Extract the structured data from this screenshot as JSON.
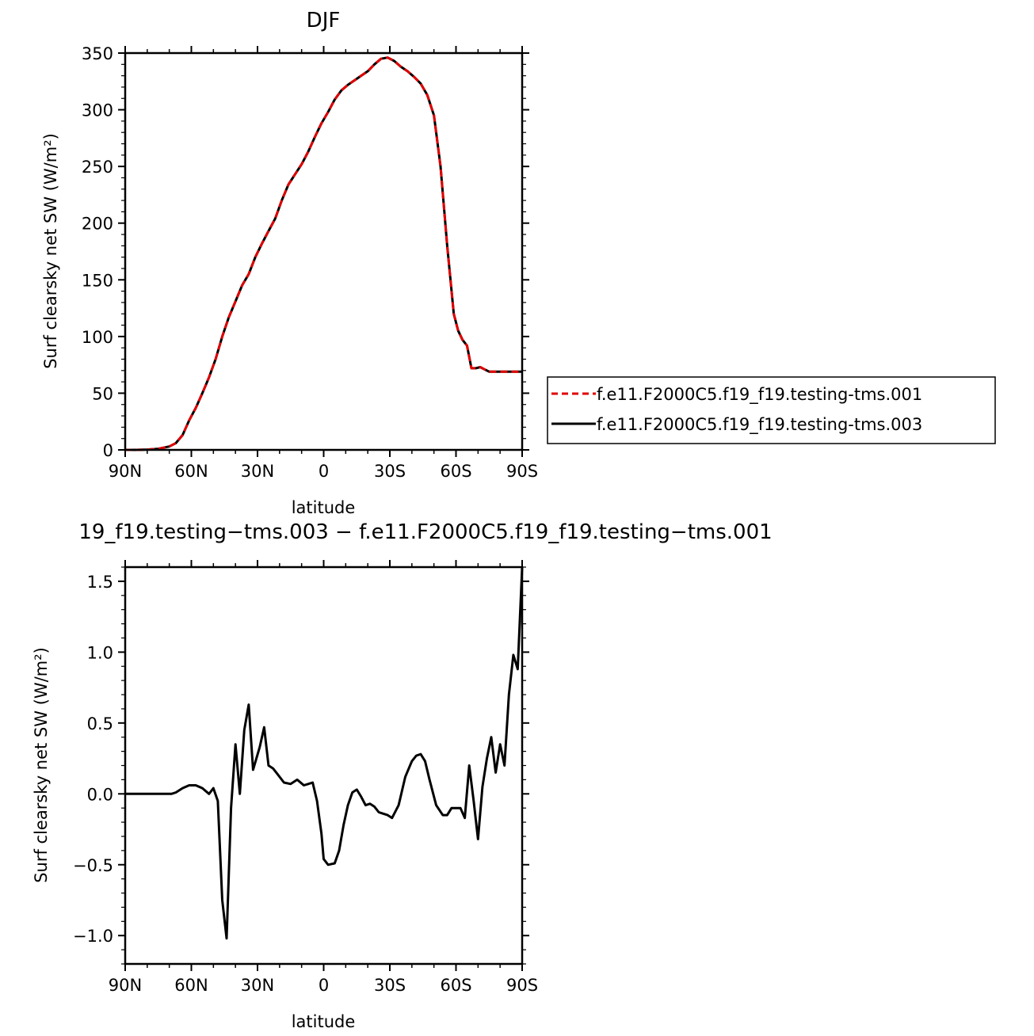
{
  "chart_data": [
    {
      "type": "line",
      "title": "DJF",
      "xlabel": "latitude",
      "ylabel": "Surf clearsky net SW (W/m²)",
      "xlim": [
        90,
        -90
      ],
      "ylim": [
        0,
        350
      ],
      "xticks": [
        90,
        60,
        30,
        0,
        -30,
        -60,
        -90
      ],
      "xtick_labels": [
        "90N",
        "60N",
        "30N",
        "0",
        "30S",
        "60S",
        "90S"
      ],
      "yticks": [
        0,
        50,
        100,
        150,
        200,
        250,
        300,
        350
      ],
      "ytick_labels": [
        "0",
        "50",
        "100",
        "150",
        "200",
        "250",
        "300",
        "350"
      ],
      "legend_position": "right",
      "series": [
        {
          "name": "f.e11.F2000C5.f19_f19.testing-tms.001",
          "color": "#e00000",
          "dash": "dashed",
          "x": [
            90,
            85,
            80,
            75,
            70,
            67,
            64,
            61,
            58,
            55,
            52,
            49,
            46,
            43,
            40,
            37,
            34,
            31,
            28,
            25,
            22,
            19,
            16,
            13,
            10,
            7,
            4,
            1,
            -2,
            -5,
            -8,
            -11,
            -14,
            -17,
            -20,
            -23,
            -26,
            -29,
            -32,
            -35,
            -38,
            -41,
            -44,
            -47,
            -50,
            -53,
            -56,
            -59,
            -61,
            -63,
            -65,
            -67,
            -69,
            -71,
            -73,
            -75,
            -77,
            -79,
            -81,
            -84,
            -87,
            -90
          ],
          "y": [
            0,
            0,
            0.3,
            1,
            3,
            6,
            13,
            26,
            37,
            50,
            64,
            80,
            100,
            117,
            131,
            145,
            155,
            170,
            182,
            193,
            204,
            220,
            234,
            243,
            252,
            263,
            276,
            288,
            298,
            309,
            317,
            322,
            326,
            330,
            334,
            340,
            345,
            346,
            343,
            338,
            334,
            329,
            323,
            313,
            295,
            250,
            180,
            120,
            105,
            97,
            92,
            72,
            72,
            73,
            71,
            69,
            69,
            69,
            69,
            69,
            69,
            69
          ]
        },
        {
          "name": "f.e11.F2000C5.f19_f19.testing-tms.003",
          "color": "#000000",
          "dash": "solid",
          "x": [
            90,
            85,
            80,
            75,
            70,
            67,
            64,
            61,
            58,
            55,
            52,
            49,
            46,
            43,
            40,
            37,
            34,
            31,
            28,
            25,
            22,
            19,
            16,
            13,
            10,
            7,
            4,
            1,
            -2,
            -5,
            -8,
            -11,
            -14,
            -17,
            -20,
            -23,
            -26,
            -29,
            -32,
            -35,
            -38,
            -41,
            -44,
            -47,
            -50,
            -53,
            -56,
            -59,
            -61,
            -63,
            -65,
            -67,
            -69,
            -71,
            -73,
            -75,
            -77,
            -79,
            -81,
            -84,
            -87,
            -90
          ],
          "y": [
            0,
            0,
            0.3,
            1,
            3,
            6,
            13,
            26,
            37,
            50,
            64,
            80,
            100,
            117,
            131,
            145,
            155,
            170,
            182,
            193,
            204,
            220,
            234,
            243,
            252,
            263,
            276,
            288,
            298,
            309,
            317,
            322,
            326,
            330,
            334,
            340,
            345,
            346,
            343,
            338,
            334,
            329,
            323,
            313,
            295,
            250,
            180,
            120,
            105,
            97,
            92,
            72,
            72,
            73,
            71,
            69,
            69,
            69,
            69,
            69,
            69,
            69
          ]
        }
      ]
    },
    {
      "type": "line",
      "title": "19_f19.testing−tms.003 − f.e11.F2000C5.f19_f19.testing−tms.001",
      "xlabel": "latitude",
      "ylabel": "Surf clearsky net SW (W/m²)",
      "xlim": [
        90,
        -90
      ],
      "ylim": [
        -1.2,
        1.6
      ],
      "xticks": [
        90,
        60,
        30,
        0,
        -30,
        -60,
        -90
      ],
      "xtick_labels": [
        "90N",
        "60N",
        "30N",
        "0",
        "30S",
        "60S",
        "90S"
      ],
      "yticks": [
        1.5,
        1.0,
        0.5,
        0.0,
        -0.5,
        -1.0
      ],
      "ytick_labels": [
        "1.5",
        "1.0",
        "0.5",
        "0.0",
        "−0.5",
        "−1.0"
      ],
      "series": [
        {
          "color": "#000000",
          "dash": "solid",
          "x": [
            90,
            85,
            80,
            75,
            72,
            69,
            67,
            64,
            61,
            58,
            55,
            52,
            50,
            48,
            46,
            44,
            42,
            40,
            38,
            36,
            34,
            32,
            29,
            27,
            25,
            23,
            21,
            18,
            15,
            12,
            9,
            7,
            5,
            3,
            1,
            0,
            -2,
            -5,
            -7,
            -9,
            -11,
            -13,
            -15,
            -17,
            -19,
            -21,
            -23,
            -25,
            -27,
            -29,
            -31,
            -34,
            -37,
            -40,
            -42,
            -44,
            -46,
            -48,
            -51,
            -54,
            -56,
            -58,
            -60,
            -62,
            -64,
            -66,
            -68,
            -70,
            -72,
            -74,
            -76,
            -78,
            -80,
            -82,
            -84,
            -86,
            -88,
            -90
          ],
          "y": [
            0,
            0,
            0,
            0,
            0,
            0,
            0.01,
            0.04,
            0.06,
            0.06,
            0.04,
            0,
            0.04,
            -0.05,
            -0.75,
            -1.02,
            -0.1,
            0.35,
            0,
            0.45,
            0.63,
            0.17,
            0.33,
            0.47,
            0.2,
            0.18,
            0.14,
            0.08,
            0.07,
            0.1,
            0.06,
            0.07,
            0.08,
            -0.05,
            -0.28,
            -0.46,
            -0.5,
            -0.49,
            -0.4,
            -0.22,
            -0.08,
            0.01,
            0.03,
            -0.02,
            -0.08,
            -0.07,
            -0.09,
            -0.13,
            -0.14,
            -0.15,
            -0.17,
            -0.08,
            0.12,
            0.23,
            0.27,
            0.28,
            0.23,
            0.1,
            -0.08,
            -0.15,
            -0.15,
            -0.1,
            -0.1,
            -0.1,
            -0.17,
            0.2,
            -0.05,
            -0.32,
            0.05,
            0.25,
            0.4,
            0.15,
            0.35,
            0.2,
            0.7,
            0.98,
            0.88,
            1.6
          ]
        }
      ]
    }
  ]
}
